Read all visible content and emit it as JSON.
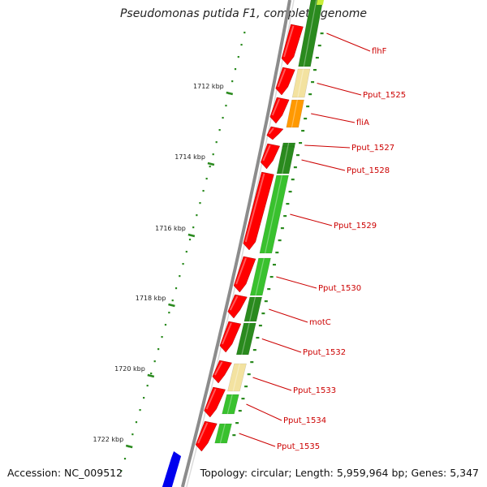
{
  "header": {
    "title": "Pseudomonas putida F1, complete genome"
  },
  "footer": {
    "accession": "Accession: NC_009512",
    "topology": "Topology: circular; Length: 5,959,964 bp; Genes: 5,347"
  },
  "scale": {
    "labels": [
      "1712 kbp",
      "1714 kbp",
      "1716 kbp",
      "1718 kbp",
      "1720 kbp",
      "1722 kbp"
    ]
  },
  "genes": [
    {
      "name": "flhF",
      "forward_color": "#ff0000",
      "reverse_color": "#2a8a1e"
    },
    {
      "name": "Pput_1525",
      "forward_color": "#ff0000",
      "reverse_color": "#f3e2a0"
    },
    {
      "name": "fliA",
      "forward_color": "#ff0000",
      "reverse_color": "#ff9900"
    },
    {
      "name": "Pput_1527",
      "forward_color": "#ff0000",
      "reverse_color": "#2a8a1e"
    },
    {
      "name": "Pput_1528",
      "forward_color": "#ff0000",
      "reverse_color": "#2a8a1e"
    },
    {
      "name": "Pput_1529",
      "forward_color": "#ff0000",
      "reverse_color": "#39c12e"
    },
    {
      "name": "Pput_1530",
      "forward_color": "#ff0000",
      "reverse_color": "#39c12e"
    },
    {
      "name": "motC",
      "forward_color": "#ff0000",
      "reverse_color": "#2a8a1e"
    },
    {
      "name": "Pput_1532",
      "forward_color": "#ff0000",
      "reverse_color": "#2a8a1e"
    },
    {
      "name": "Pput_1533",
      "forward_color": "#ff0000",
      "reverse_color": "#f3e2a0"
    },
    {
      "name": "Pput_1534",
      "forward_color": "#ff0000",
      "reverse_color": "#39c12e"
    },
    {
      "name": "Pput_1535",
      "forward_color": "#ff0000",
      "reverse_color": "#39c12e"
    }
  ],
  "colors": {
    "backbone": "#8c8c8c",
    "label": "#cc0000",
    "tick": "#2a8a1e",
    "blue_gene": "#0000ee"
  }
}
